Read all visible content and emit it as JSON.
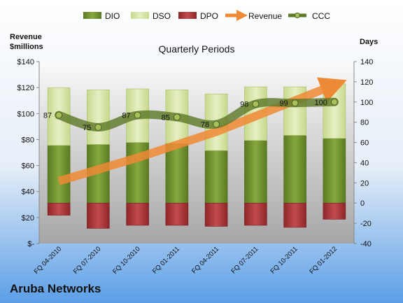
{
  "chart_data": {
    "type": "bar",
    "title": "Quarterly Periods",
    "company": "Aruba Networks",
    "ylabel_left_line1": "Revenue",
    "ylabel_left_line2": "$millions",
    "ylabel_right": "Days",
    "categories": [
      "FQ 04-2010",
      "FQ 07-2010",
      "FQ 10-2010",
      "FQ 01-2011",
      "FQ 04-2011",
      "FQ 07-2011",
      "FQ 10-2011",
      "FQ 01-2012"
    ],
    "left_axis": {
      "ticks": [
        "$-",
        "$20",
        "$40",
        "$60",
        "$80",
        "$100",
        "$120",
        "$140"
      ],
      "range": [
        0,
        140
      ]
    },
    "right_axis": {
      "ticks": [
        "-40",
        "-20",
        "0",
        "20",
        "40",
        "60",
        "80",
        "100",
        "120",
        "140"
      ],
      "range": [
        -40,
        140
      ]
    },
    "series": [
      {
        "name": "DIO",
        "axis": "right",
        "values": [
          57,
          58,
          60,
          59,
          52,
          62,
          67,
          64
        ],
        "color": "#6e8c2e"
      },
      {
        "name": "DSO",
        "axis": "right",
        "values": [
          57,
          54,
          53,
          53,
          56,
          53,
          48,
          54
        ],
        "color": "#d7e6a5"
      },
      {
        "name": "DPO",
        "axis": "right",
        "values": [
          -12,
          -25,
          -22,
          -22,
          -23,
          -22,
          -24,
          -16
        ],
        "color": "#b23a3e"
      },
      {
        "name": "Revenue",
        "axis": "left",
        "values": [
          48,
          57,
          66,
          76,
          86,
          98,
          110,
          122
        ],
        "color": "#ee8a35"
      },
      {
        "name": "CCC",
        "axis": "right",
        "values": [
          87,
          75,
          87,
          85,
          78,
          98,
          99,
          100
        ],
        "color": "#5f7a2a"
      }
    ],
    "data_labels": [
      "87",
      "75",
      "87",
      "85",
      "78",
      "98",
      "99",
      "100"
    ],
    "legend_position": "top"
  }
}
